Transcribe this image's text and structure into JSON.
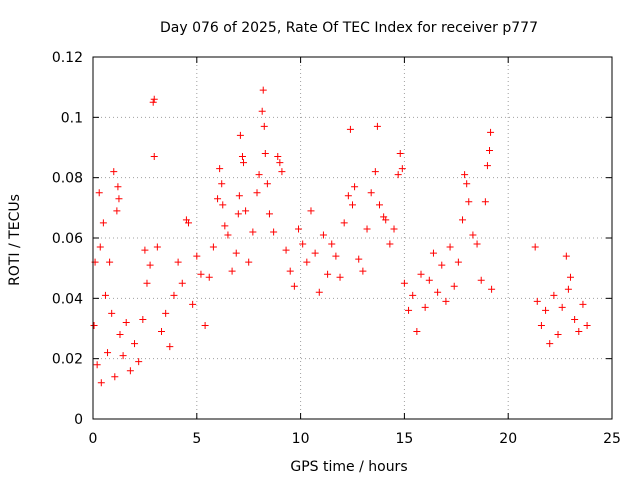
{
  "chart_data": {
    "type": "scatter",
    "title": "Day 076 of 2025, Rate Of TEC Index for receiver p777",
    "xlabel": "GPS time / hours",
    "ylabel": "ROTI / TECUs",
    "xlim": [
      0,
      25
    ],
    "ylim": [
      0,
      0.12
    ],
    "xticks": [
      0,
      5,
      10,
      15,
      20,
      25
    ],
    "xtick_labels": [
      "0",
      "5",
      "10",
      "15",
      "20",
      "25"
    ],
    "yticks": [
      0,
      0.02,
      0.04,
      0.06,
      0.08,
      0.1,
      0.12
    ],
    "ytick_labels": [
      "0",
      "0.02",
      "0.04",
      "0.06",
      "0.08",
      "0.1",
      "0.12"
    ],
    "grid": true,
    "marker": "+",
    "color": "#ff0000",
    "series": [
      {
        "points": [
          [
            0.05,
            0.031
          ],
          [
            0.1,
            0.052
          ],
          [
            0.2,
            0.018
          ],
          [
            0.3,
            0.075
          ],
          [
            0.35,
            0.057
          ],
          [
            0.4,
            0.012
          ],
          [
            0.5,
            0.065
          ],
          [
            0.6,
            0.041
          ],
          [
            0.7,
            0.022
          ],
          [
            0.8,
            0.052
          ],
          [
            0.9,
            0.035
          ],
          [
            1.0,
            0.082
          ],
          [
            1.05,
            0.014
          ],
          [
            1.15,
            0.069
          ],
          [
            1.2,
            0.077
          ],
          [
            1.25,
            0.073
          ],
          [
            1.3,
            0.028
          ],
          [
            1.45,
            0.021
          ],
          [
            1.6,
            0.032
          ],
          [
            1.8,
            0.016
          ],
          [
            2.0,
            0.025
          ],
          [
            2.2,
            0.019
          ],
          [
            2.4,
            0.033
          ],
          [
            2.5,
            0.056
          ],
          [
            2.6,
            0.045
          ],
          [
            2.75,
            0.051
          ],
          [
            2.9,
            0.105
          ],
          [
            2.95,
            0.106
          ],
          [
            2.95,
            0.087
          ],
          [
            3.1,
            0.057
          ],
          [
            3.3,
            0.029
          ],
          [
            3.5,
            0.035
          ],
          [
            3.7,
            0.024
          ],
          [
            3.9,
            0.041
          ],
          [
            4.1,
            0.052
          ],
          [
            4.3,
            0.045
          ],
          [
            4.5,
            0.066
          ],
          [
            4.6,
            0.065
          ],
          [
            4.8,
            0.038
          ],
          [
            5.0,
            0.054
          ],
          [
            5.2,
            0.048
          ],
          [
            5.4,
            0.031
          ],
          [
            5.6,
            0.047
          ],
          [
            5.8,
            0.057
          ],
          [
            6.0,
            0.073
          ],
          [
            6.1,
            0.083
          ],
          [
            6.2,
            0.078
          ],
          [
            6.25,
            0.071
          ],
          [
            6.35,
            0.064
          ],
          [
            6.5,
            0.061
          ],
          [
            6.7,
            0.049
          ],
          [
            6.9,
            0.055
          ],
          [
            7.0,
            0.068
          ],
          [
            7.05,
            0.074
          ],
          [
            7.1,
            0.094
          ],
          [
            7.2,
            0.087
          ],
          [
            7.25,
            0.085
          ],
          [
            7.35,
            0.069
          ],
          [
            7.5,
            0.052
          ],
          [
            7.7,
            0.062
          ],
          [
            7.9,
            0.075
          ],
          [
            8.0,
            0.081
          ],
          [
            8.15,
            0.102
          ],
          [
            8.2,
            0.109
          ],
          [
            8.25,
            0.097
          ],
          [
            8.3,
            0.088
          ],
          [
            8.4,
            0.078
          ],
          [
            8.5,
            0.068
          ],
          [
            8.7,
            0.062
          ],
          [
            8.9,
            0.087
          ],
          [
            9.0,
            0.085
          ],
          [
            9.1,
            0.082
          ],
          [
            9.3,
            0.056
          ],
          [
            9.5,
            0.049
          ],
          [
            9.7,
            0.044
          ],
          [
            9.9,
            0.063
          ],
          [
            10.1,
            0.058
          ],
          [
            10.3,
            0.052
          ],
          [
            10.5,
            0.069
          ],
          [
            10.7,
            0.055
          ],
          [
            10.9,
            0.042
          ],
          [
            11.1,
            0.061
          ],
          [
            11.3,
            0.048
          ],
          [
            11.5,
            0.058
          ],
          [
            11.7,
            0.054
          ],
          [
            11.9,
            0.047
          ],
          [
            12.1,
            0.065
          ],
          [
            12.3,
            0.074
          ],
          [
            12.4,
            0.096
          ],
          [
            12.5,
            0.071
          ],
          [
            12.6,
            0.077
          ],
          [
            12.8,
            0.053
          ],
          [
            13.0,
            0.049
          ],
          [
            13.2,
            0.063
          ],
          [
            13.4,
            0.075
          ],
          [
            13.6,
            0.082
          ],
          [
            13.7,
            0.097
          ],
          [
            13.8,
            0.071
          ],
          [
            14.0,
            0.067
          ],
          [
            14.1,
            0.066
          ],
          [
            14.3,
            0.058
          ],
          [
            14.5,
            0.063
          ],
          [
            14.7,
            0.081
          ],
          [
            14.8,
            0.088
          ],
          [
            14.9,
            0.083
          ],
          [
            15.0,
            0.045
          ],
          [
            15.2,
            0.036
          ],
          [
            15.4,
            0.041
          ],
          [
            15.6,
            0.029
          ],
          [
            15.8,
            0.048
          ],
          [
            16.0,
            0.037
          ],
          [
            16.2,
            0.046
          ],
          [
            16.4,
            0.055
          ],
          [
            16.6,
            0.042
          ],
          [
            16.8,
            0.051
          ],
          [
            17.0,
            0.039
          ],
          [
            17.2,
            0.057
          ],
          [
            17.4,
            0.044
          ],
          [
            17.6,
            0.052
          ],
          [
            17.8,
            0.066
          ],
          [
            17.9,
            0.081
          ],
          [
            18.0,
            0.078
          ],
          [
            18.1,
            0.072
          ],
          [
            18.3,
            0.061
          ],
          [
            18.5,
            0.058
          ],
          [
            18.7,
            0.046
          ],
          [
            18.9,
            0.072
          ],
          [
            19.0,
            0.084
          ],
          [
            19.1,
            0.089
          ],
          [
            19.15,
            0.095
          ],
          [
            19.2,
            0.043
          ],
          [
            21.3,
            0.057
          ],
          [
            21.4,
            0.039
          ],
          [
            21.6,
            0.031
          ],
          [
            21.8,
            0.036
          ],
          [
            22.0,
            0.025
          ],
          [
            22.2,
            0.041
          ],
          [
            22.4,
            0.028
          ],
          [
            22.6,
            0.037
          ],
          [
            22.8,
            0.054
          ],
          [
            22.9,
            0.043
          ],
          [
            23.0,
            0.047
          ],
          [
            23.2,
            0.033
          ],
          [
            23.4,
            0.029
          ],
          [
            23.6,
            0.038
          ],
          [
            23.8,
            0.031
          ]
        ]
      }
    ]
  }
}
